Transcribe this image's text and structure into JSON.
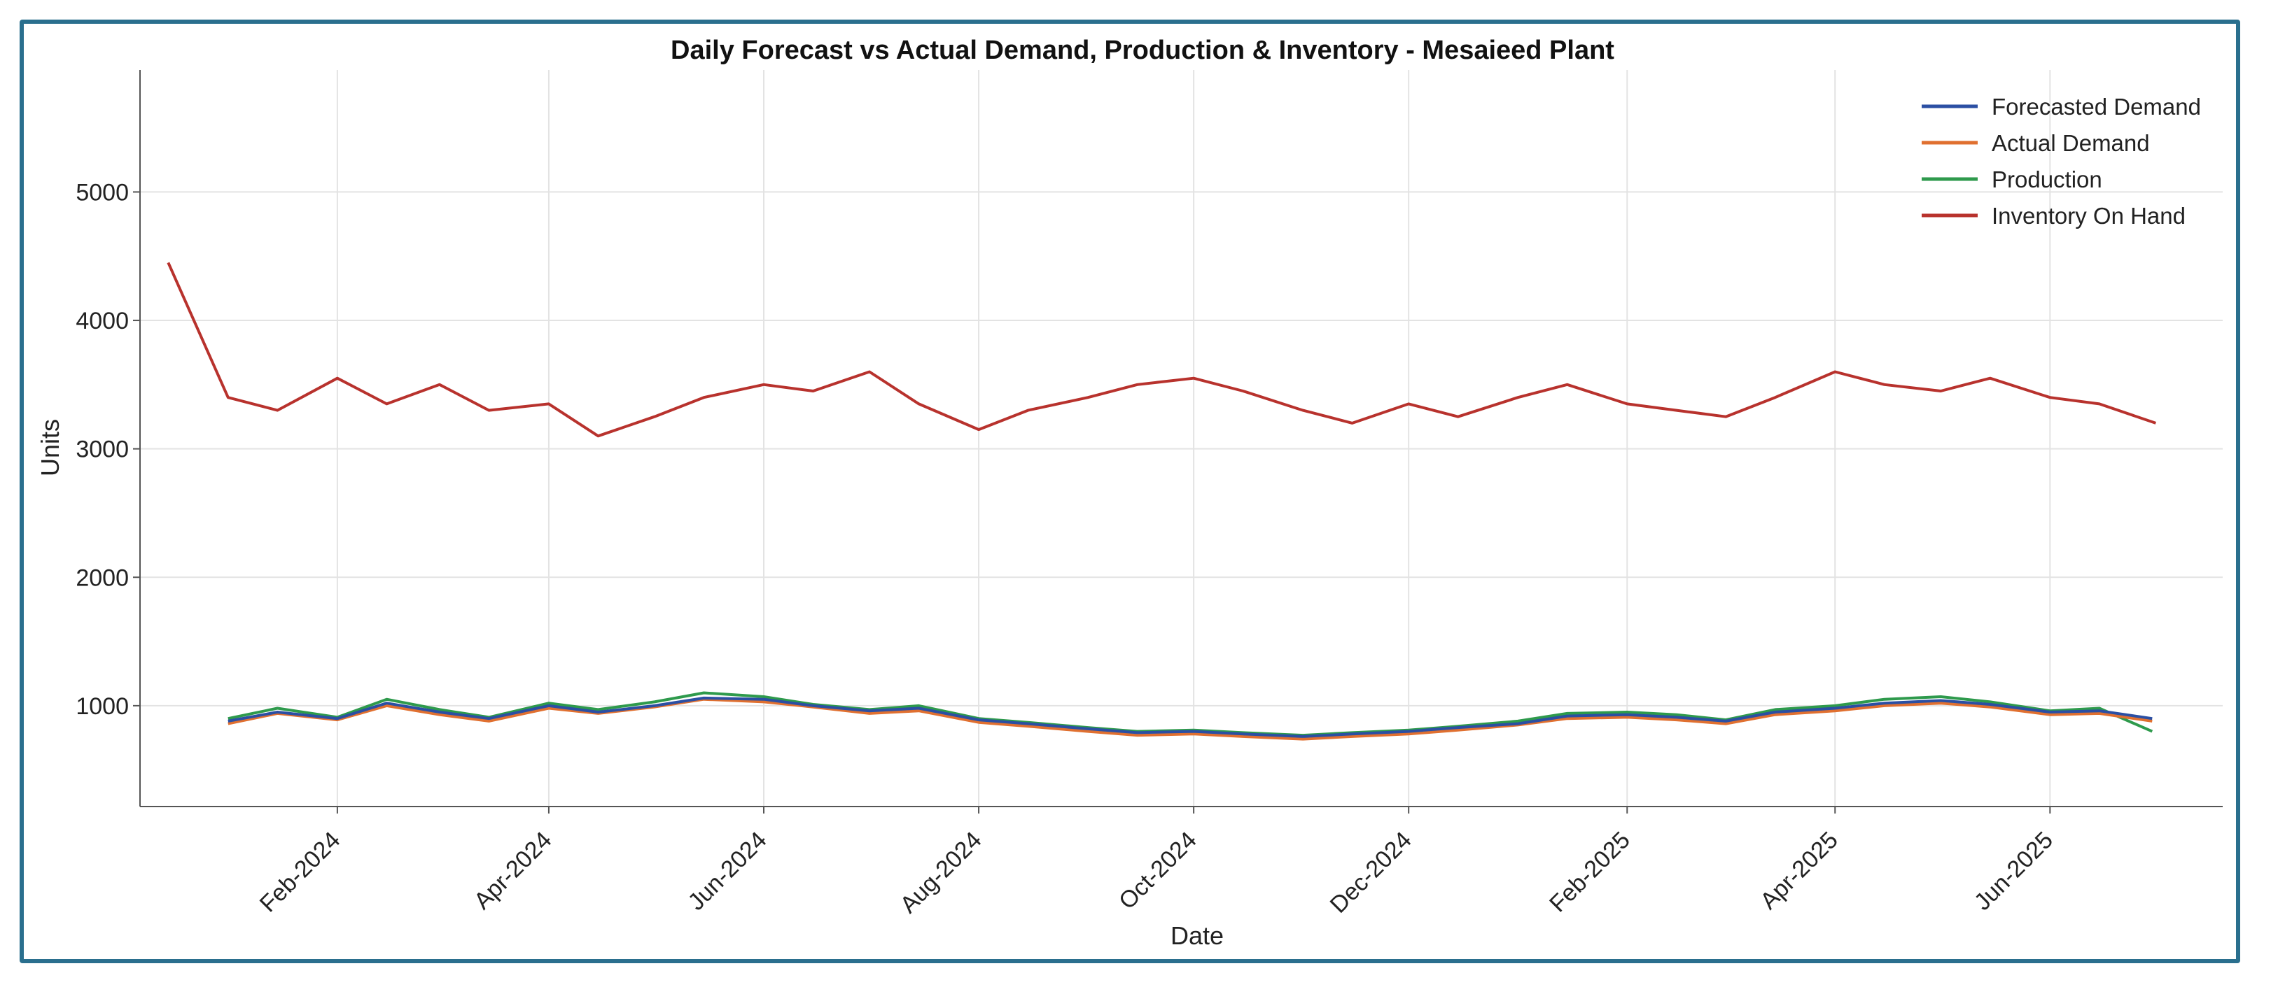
{
  "chart_data": {
    "type": "line",
    "title": "Daily Forecast vs Actual Demand, Production & Inventory - Mesaieed Plant",
    "xlabel": "Date",
    "ylabel": "Units",
    "x_range": [
      "2023-12-07",
      "2025-07-20"
    ],
    "ylim": [
      215,
      5950
    ],
    "yticks": [
      1000,
      2000,
      3000,
      4000,
      5000
    ],
    "xticks": [
      {
        "date": "2024-02-01",
        "label": "Feb-2024"
      },
      {
        "date": "2024-04-01",
        "label": "Apr-2024"
      },
      {
        "date": "2024-06-01",
        "label": "Jun-2024"
      },
      {
        "date": "2024-08-01",
        "label": "Aug-2024"
      },
      {
        "date": "2024-10-01",
        "label": "Oct-2024"
      },
      {
        "date": "2024-12-01",
        "label": "Dec-2024"
      },
      {
        "date": "2025-02-01",
        "label": "Feb-2025"
      },
      {
        "date": "2025-04-01",
        "label": "Apr-2025"
      },
      {
        "date": "2025-06-01",
        "label": "Jun-2025"
      }
    ],
    "grid": true,
    "legend_position": "top-right",
    "series": [
      {
        "name": "Forecasted Demand",
        "color": "#2b4fa3",
        "x": [
          "2024-01-01",
          "2024-01-15",
          "2024-02-01",
          "2024-02-15",
          "2024-03-01",
          "2024-03-15",
          "2024-04-01",
          "2024-04-15",
          "2024-05-01",
          "2024-05-15",
          "2024-06-01",
          "2024-06-15",
          "2024-07-01",
          "2024-07-15",
          "2024-08-01",
          "2024-08-15",
          "2024-09-01",
          "2024-09-15",
          "2024-10-01",
          "2024-10-15",
          "2024-11-01",
          "2024-11-15",
          "2024-12-01",
          "2024-12-15",
          "2025-01-01",
          "2025-01-15",
          "2025-02-01",
          "2025-02-15",
          "2025-03-01",
          "2025-03-15",
          "2025-04-01",
          "2025-04-15",
          "2025-05-01",
          "2025-05-15",
          "2025-06-01",
          "2025-06-15",
          "2025-06-30"
        ],
        "y": [
          880,
          950,
          900,
          1020,
          950,
          900,
          1000,
          950,
          1000,
          1060,
          1050,
          1000,
          960,
          980,
          890,
          860,
          820,
          790,
          800,
          780,
          760,
          780,
          800,
          830,
          860,
          920,
          930,
          910,
          880,
          950,
          980,
          1020,
          1040,
          1010,
          950,
          960,
          900
        ]
      },
      {
        "name": "Actual Demand",
        "color": "#e07030",
        "x": [
          "2024-01-01",
          "2024-01-15",
          "2024-02-01",
          "2024-02-15",
          "2024-03-01",
          "2024-03-15",
          "2024-04-01",
          "2024-04-15",
          "2024-05-01",
          "2024-05-15",
          "2024-06-01",
          "2024-06-15",
          "2024-07-01",
          "2024-07-15",
          "2024-08-01",
          "2024-08-15",
          "2024-09-01",
          "2024-09-15",
          "2024-10-01",
          "2024-10-15",
          "2024-11-01",
          "2024-11-15",
          "2024-12-01",
          "2024-12-15",
          "2025-01-01",
          "2025-01-15",
          "2025-02-01",
          "2025-02-15",
          "2025-03-01",
          "2025-03-15",
          "2025-04-01",
          "2025-04-15",
          "2025-05-01",
          "2025-05-15",
          "2025-06-01",
          "2025-06-15",
          "2025-06-30"
        ],
        "y": [
          860,
          940,
          890,
          1000,
          930,
          880,
          980,
          940,
          990,
          1050,
          1030,
          990,
          940,
          960,
          870,
          840,
          800,
          770,
          780,
          760,
          740,
          760,
          780,
          810,
          850,
          900,
          910,
          890,
          860,
          930,
          960,
          1000,
          1020,
          990,
          930,
          940,
          880
        ]
      },
      {
        "name": "Production",
        "color": "#2e9a4c",
        "x": [
          "2024-01-01",
          "2024-01-15",
          "2024-02-01",
          "2024-02-15",
          "2024-03-01",
          "2024-03-15",
          "2024-04-01",
          "2024-04-15",
          "2024-05-01",
          "2024-05-15",
          "2024-06-01",
          "2024-06-15",
          "2024-07-01",
          "2024-07-15",
          "2024-08-01",
          "2024-08-15",
          "2024-09-01",
          "2024-09-15",
          "2024-10-01",
          "2024-10-15",
          "2024-11-01",
          "2024-11-15",
          "2024-12-01",
          "2024-12-15",
          "2025-01-01",
          "2025-01-15",
          "2025-02-01",
          "2025-02-15",
          "2025-03-01",
          "2025-03-15",
          "2025-04-01",
          "2025-04-15",
          "2025-05-01",
          "2025-05-15",
          "2025-06-01",
          "2025-06-15",
          "2025-06-30"
        ],
        "y": [
          900,
          980,
          910,
          1050,
          970,
          910,
          1020,
          970,
          1030,
          1100,
          1070,
          1010,
          970,
          1000,
          900,
          870,
          830,
          800,
          810,
          790,
          770,
          790,
          810,
          840,
          880,
          940,
          950,
          930,
          890,
          970,
          1000,
          1050,
          1070,
          1030,
          960,
          980,
          800
        ]
      },
      {
        "name": "Inventory On Hand",
        "color": "#b8322d",
        "x": [
          "2023-12-15",
          "2024-01-01",
          "2024-01-15",
          "2024-02-01",
          "2024-02-15",
          "2024-03-01",
          "2024-03-15",
          "2024-04-01",
          "2024-04-15",
          "2024-05-01",
          "2024-05-15",
          "2024-06-01",
          "2024-06-15",
          "2024-07-01",
          "2024-07-15",
          "2024-08-01",
          "2024-08-15",
          "2024-09-01",
          "2024-09-15",
          "2024-10-01",
          "2024-10-15",
          "2024-11-01",
          "2024-11-15",
          "2024-12-01",
          "2024-12-15",
          "2025-01-01",
          "2025-01-15",
          "2025-02-01",
          "2025-02-15",
          "2025-03-01",
          "2025-03-15",
          "2025-04-01",
          "2025-04-15",
          "2025-05-01",
          "2025-05-15",
          "2025-06-01",
          "2025-06-15",
          "2025-07-01"
        ],
        "y": [
          4450,
          3400,
          3300,
          3550,
          3350,
          3500,
          3300,
          3350,
          3100,
          3250,
          3400,
          3500,
          3450,
          3600,
          3350,
          3150,
          3300,
          3400,
          3500,
          3550,
          3450,
          3300,
          3200,
          3350,
          3250,
          3400,
          3500,
          3350,
          3300,
          3250,
          3400,
          3600,
          3500,
          3450,
          3550,
          3400,
          3350,
          3200
        ]
      }
    ]
  }
}
